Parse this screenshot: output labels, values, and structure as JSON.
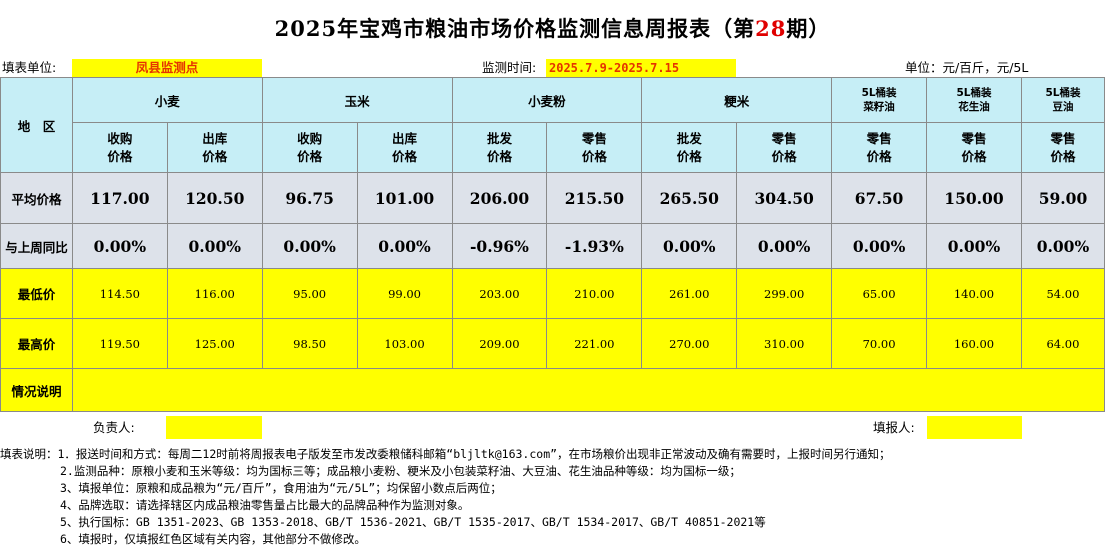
{
  "title": {
    "prefix": "2025年宝鸡市粮油市场价格监测信息周报表（第",
    "issue": "28",
    "suffix": "期）"
  },
  "info": {
    "unit_label": "填表单位:",
    "unit_value": "凤县监测点",
    "time_label": "监测时间:",
    "time_value": "2025.7.9-2025.7.15",
    "currency_label": "单位：元/百斤，元/5L"
  },
  "table": {
    "region_label": "地　区",
    "groups": [
      "小麦",
      "玉米",
      "小麦粉",
      "粳米"
    ],
    "oils": [
      {
        "line1": "5L桶装",
        "line2": "菜籽油"
      },
      {
        "line1": "5L桶装",
        "line2": "花生油"
      },
      {
        "line1": "5L桶装",
        "line2": "豆油"
      }
    ],
    "subheaders": [
      {
        "l1": "收购",
        "l2": "价格"
      },
      {
        "l1": "出库",
        "l2": "价格"
      },
      {
        "l1": "收购",
        "l2": "价格"
      },
      {
        "l1": "出库",
        "l2": "价格"
      },
      {
        "l1": "批发",
        "l2": "价格"
      },
      {
        "l1": "零售",
        "l2": "价格"
      },
      {
        "l1": "批发",
        "l2": "价格"
      },
      {
        "l1": "零售",
        "l2": "价格"
      },
      {
        "l1": "零售",
        "l2": "价格"
      },
      {
        "l1": "零售",
        "l2": "价格"
      },
      {
        "l1": "零售",
        "l2": "价格"
      }
    ],
    "rows": {
      "avg": {
        "label": "平均价格",
        "values": [
          "117.00",
          "120.50",
          "96.75",
          "101.00",
          "206.00",
          "215.50",
          "265.50",
          "304.50",
          "67.50",
          "150.00",
          "59.00"
        ]
      },
      "wow": {
        "label": "与上周同比",
        "values": [
          "0.00%",
          "0.00%",
          "0.00%",
          "0.00%",
          "-0.96%",
          "-1.93%",
          "0.00%",
          "0.00%",
          "0.00%",
          "0.00%",
          "0.00%"
        ]
      },
      "min": {
        "label": "最低价",
        "values": [
          "114.50",
          "116.00",
          "95.00",
          "99.00",
          "203.00",
          "210.00",
          "261.00",
          "299.00",
          "65.00",
          "140.00",
          "54.00"
        ]
      },
      "max": {
        "label": "最高价",
        "values": [
          "119.50",
          "125.00",
          "98.50",
          "103.00",
          "209.00",
          "221.00",
          "270.00",
          "310.00",
          "70.00",
          "160.00",
          "64.00"
        ]
      },
      "notes": {
        "label": "情况说明",
        "value": ""
      }
    }
  },
  "footer": {
    "responsible_label": "负责人:",
    "reporter_label": "填报人:"
  },
  "notes": [
    "填表说明：1．报送时间和方式：每周二12时前将周报表电子版发至市发改委粮储科邮箱“bljltk@163.com”，在市场粮价出现非正常波动及确有需要时，上报时间另行通知；",
    "2.监测品种：原粮小麦和玉米等级：均为国标三等；成品粮小麦粉、粳米及小包装菜籽油、大豆油、花生油品种等级：均为国标一级；",
    "3、填报单位：原粮和成品粮为“元/百斤”，食用油为“元/5L”；均保留小数点后两位；",
    "4、品牌选取：请选择辖区内成品粮油零售量占比最大的品牌品种作为监测对象。",
    "5、执行国标：GB 1351-2023、GB 1353-2018、GB/T 1536-2021、GB/T 1535-2017、GB/T 1534-2017、GB/T 40851-2021等",
    "6、填报时，仅填报红色区域有关内容，其他部分不做修改。"
  ]
}
